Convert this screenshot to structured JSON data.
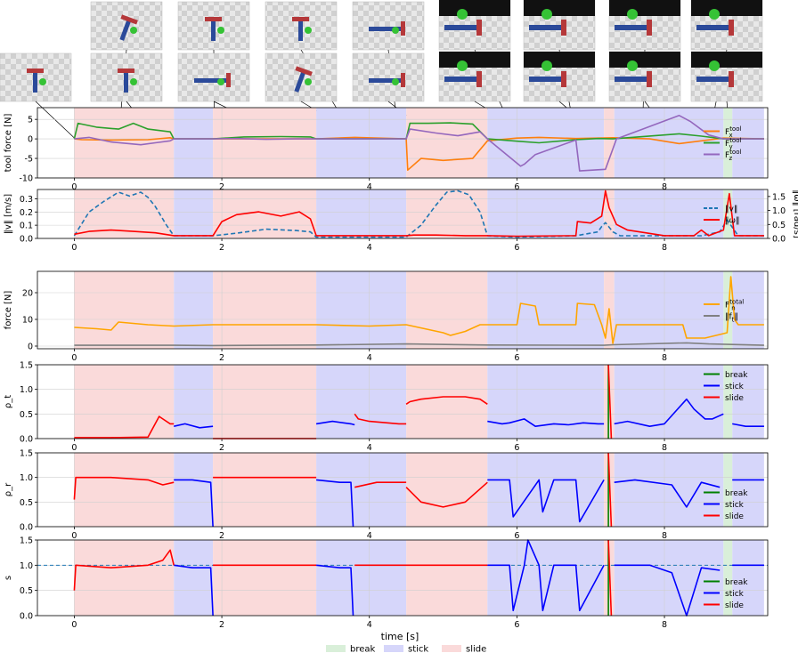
{
  "figure": {
    "xlabel": "time [s]",
    "xticks": [
      0,
      2,
      4,
      6,
      8
    ],
    "xlim": [
      -0.5,
      9.4
    ],
    "phase_colors": {
      "break": "#d9efd9",
      "stick": "#d6d6fa",
      "slide": "#fadada"
    },
    "phases": [
      {
        "label": "slide",
        "start": 0.0,
        "end": 1.35
      },
      {
        "label": "stick",
        "start": 1.35,
        "end": 1.88
      },
      {
        "label": "slide",
        "start": 1.88,
        "end": 3.28
      },
      {
        "label": "stick",
        "start": 3.28,
        "end": 4.5
      },
      {
        "label": "slide",
        "start": 4.5,
        "end": 5.6
      },
      {
        "label": "stick",
        "start": 5.6,
        "end": 7.18
      },
      {
        "label": "slide",
        "start": 7.18,
        "end": 7.32
      },
      {
        "label": "stick",
        "start": 7.32,
        "end": 8.8
      },
      {
        "label": "break",
        "start": 8.8,
        "end": 8.92
      },
      {
        "label": "stick",
        "start": 8.92,
        "end": 9.35
      }
    ],
    "bottom_legend": [
      {
        "label": "break",
        "color": "#d9efd9"
      },
      {
        "label": "stick",
        "color": "#d6d6fa"
      },
      {
        "label": "slide",
        "color": "#fadada"
      }
    ],
    "thumbnails": [
      {
        "t": 0.0,
        "kind": "tool_upright"
      },
      {
        "t": 0.6,
        "kind": "tool_tilted"
      },
      {
        "t": 1.1,
        "kind": "tool_small"
      },
      {
        "t": 1.9,
        "kind": "tool_upright"
      },
      {
        "t": 2.9,
        "kind": "tool_lying"
      },
      {
        "t": 3.8,
        "kind": "tool_small"
      },
      {
        "t": 3.9,
        "kind": "tool_tilted"
      },
      {
        "t": 4.4,
        "kind": "tool_lying"
      },
      {
        "t": 4.9,
        "kind": "tool_long"
      },
      {
        "t": 6.0,
        "kind": "closeup"
      },
      {
        "t": 6.25,
        "kind": "closeup"
      },
      {
        "t": 6.8,
        "kind": "closeup"
      },
      {
        "t": 7.15,
        "kind": "closeup"
      },
      {
        "t": 7.7,
        "kind": "closeup"
      },
      {
        "t": 8.1,
        "kind": "closeup"
      },
      {
        "t": 8.6,
        "kind": "closeup"
      },
      {
        "t": 8.9,
        "kind": "closeup"
      }
    ]
  },
  "chart_data": [
    {
      "type": "line",
      "ylabel": "tool force [N]",
      "ylim": [
        -10,
        8
      ],
      "yticks": [
        -10,
        -5,
        0,
        5
      ],
      "legend": "right",
      "series": [
        {
          "name": "F_x^tool",
          "color": "#ff7f0e",
          "x": [
            0,
            0.1,
            0.5,
            1.0,
            1.3,
            1.35,
            1.88,
            3.2,
            3.28,
            3.8,
            4.5,
            4.52,
            4.7,
            5.0,
            5.4,
            5.6,
            6.0,
            6.3,
            6.8,
            7.1,
            7.3,
            7.8,
            8.2,
            8.5,
            8.8,
            9.35
          ],
          "y": [
            0,
            -0.2,
            -0.3,
            -0.2,
            0.3,
            0,
            0,
            0,
            0,
            0.4,
            0,
            -8.0,
            -5.0,
            -5.5,
            -5.0,
            -0.5,
            0.2,
            0.4,
            0.1,
            0.2,
            0.3,
            0,
            -1.2,
            -0.5,
            0.2,
            0
          ]
        },
        {
          "name": "F_y^tool",
          "color": "#2ca02c",
          "x": [
            0,
            0.05,
            0.3,
            0.6,
            0.8,
            1.0,
            1.3,
            1.35,
            1.88,
            2.3,
            2.8,
            3.2,
            3.28,
            3.7,
            4.5,
            4.55,
            4.8,
            5.1,
            5.4,
            5.6,
            6.0,
            6.3,
            6.8,
            7.1,
            7.3,
            8.2,
            8.5,
            8.8,
            9.35
          ],
          "y": [
            0,
            4.0,
            3.0,
            2.5,
            4.0,
            2.5,
            1.8,
            0,
            0,
            0.5,
            0.6,
            0.5,
            0,
            0,
            0,
            4.0,
            4.0,
            4.1,
            3.8,
            0,
            -0.6,
            -1.0,
            -0.2,
            0.1,
            0,
            1.3,
            0.7,
            0,
            0
          ]
        },
        {
          "name": "F_z^tool",
          "color": "#9467bd",
          "x": [
            0,
            0.2,
            0.5,
            0.9,
            1.1,
            1.3,
            1.35,
            1.88,
            2.2,
            2.6,
            3.0,
            3.28,
            3.8,
            4.5,
            4.55,
            4.9,
            5.2,
            5.5,
            5.6,
            6.05,
            6.1,
            6.25,
            6.8,
            6.85,
            7.2,
            7.35,
            8.2,
            8.35,
            8.6,
            8.8,
            9.35
          ],
          "y": [
            0,
            0.4,
            -0.8,
            -1.5,
            -1.0,
            -0.5,
            0,
            0,
            0.1,
            -0.1,
            0,
            0,
            0,
            0,
            2.5,
            1.5,
            0.8,
            1.8,
            0,
            -7.0,
            -6.5,
            -4.0,
            -0.3,
            -8.2,
            -7.8,
            0,
            6.0,
            4.5,
            1.0,
            0,
            0
          ]
        }
      ]
    },
    {
      "type": "line",
      "ylabel": "‖v‖ [m/s]",
      "ylabel_right": "‖ω‖ [rad/s]",
      "ylim": [
        0,
        0.37
      ],
      "yticks": [
        0.0,
        0.1,
        0.2,
        0.3
      ],
      "ylim_right": [
        0,
        1.75
      ],
      "yticks_right": [
        0.0,
        0.5,
        1.0,
        1.5
      ],
      "legend": "right",
      "series": [
        {
          "name": "‖v‖",
          "color": "#1f77b4",
          "dashed": true,
          "axis": "left",
          "x": [
            0,
            0.2,
            0.4,
            0.6,
            0.75,
            0.9,
            1.0,
            1.1,
            1.25,
            1.35,
            1.88,
            2.2,
            2.6,
            3.0,
            3.2,
            3.28,
            4.5,
            4.7,
            4.9,
            5.05,
            5.2,
            5.35,
            5.5,
            5.6,
            6.0,
            6.8,
            7.1,
            7.15,
            7.2,
            7.3,
            7.4,
            8.0,
            8.5,
            8.75,
            8.85,
            9.0,
            9.35
          ],
          "y": [
            0.02,
            0.2,
            0.28,
            0.35,
            0.32,
            0.35,
            0.31,
            0.24,
            0.1,
            0.02,
            0.02,
            0.04,
            0.07,
            0.06,
            0.05,
            0.01,
            0.01,
            0.1,
            0.25,
            0.35,
            0.36,
            0.33,
            0.2,
            0.02,
            0.01,
            0.02,
            0.05,
            0.09,
            0.12,
            0.05,
            0.02,
            0.02,
            0.02,
            0.05,
            0.14,
            0.02,
            0.02
          ]
        },
        {
          "name": "‖ω‖",
          "color": "#ff0000",
          "axis": "right",
          "x": [
            0,
            0.2,
            0.5,
            0.8,
            1.1,
            1.35,
            1.88,
            2.0,
            2.2,
            2.5,
            2.8,
            3.05,
            3.2,
            3.28,
            4.5,
            4.6,
            4.9,
            5.3,
            5.6,
            6.0,
            6.8,
            6.82,
            7.0,
            7.15,
            7.2,
            7.25,
            7.35,
            7.5,
            8.0,
            8.4,
            8.5,
            8.6,
            8.8,
            8.88,
            8.95,
            9.35
          ],
          "y": [
            0.15,
            0.25,
            0.3,
            0.25,
            0.2,
            0.1,
            0.1,
            0.6,
            0.85,
            0.95,
            0.8,
            0.95,
            0.7,
            0.1,
            0.1,
            0.12,
            0.12,
            0.1,
            0.1,
            0.08,
            0.1,
            0.6,
            0.55,
            0.8,
            1.7,
            1.1,
            0.5,
            0.3,
            0.1,
            0.1,
            0.3,
            0.1,
            0.3,
            1.6,
            0.1,
            0.1
          ]
        }
      ]
    },
    {
      "type": "line",
      "ylabel": "force [N]",
      "ylim": [
        -1,
        28
      ],
      "yticks": [
        0,
        10,
        20
      ],
      "legend": "right",
      "series": [
        {
          "name": "F_n^total",
          "color": "#ffa500",
          "x": [
            0,
            0.3,
            0.5,
            0.6,
            1.0,
            1.35,
            1.88,
            2.5,
            3.28,
            4.0,
            4.5,
            5.0,
            5.1,
            5.3,
            5.5,
            5.6,
            6.0,
            6.05,
            6.25,
            6.3,
            6.8,
            6.82,
            7.05,
            7.15,
            7.2,
            7.25,
            7.3,
            7.35,
            8.0,
            8.25,
            8.3,
            8.55,
            8.7,
            8.85,
            8.9,
            8.95,
            9.0,
            9.35
          ],
          "y": [
            7,
            6.5,
            6,
            9,
            8,
            7.5,
            8,
            8,
            8,
            7.5,
            8,
            5.0,
            4.0,
            5.5,
            8,
            8,
            8,
            16,
            15,
            8,
            8,
            16,
            15.5,
            8,
            3,
            14,
            1,
            8,
            8,
            8,
            3,
            3,
            4,
            5,
            26,
            10,
            8,
            8
          ]
        },
        {
          "name": "‖f_t‖",
          "color": "#808080",
          "x": [
            0,
            1.35,
            1.88,
            3.28,
            4.5,
            5.6,
            7.18,
            7.3,
            8.3,
            8.6,
            9.35
          ],
          "y": [
            0.3,
            0.3,
            0.2,
            0.4,
            0.8,
            0.4,
            0.3,
            0.5,
            1.2,
            0.8,
            0.3
          ]
        }
      ]
    },
    {
      "type": "line",
      "ylabel": "ρ_t",
      "ylim": [
        0,
        1.5
      ],
      "yticks": [
        0.0,
        0.5,
        1.0,
        1.5
      ],
      "legend": "top-right",
      "series": [
        {
          "name": "break",
          "color": "#008000",
          "x": [
            7.24,
            7.24
          ],
          "y": [
            0,
            1.5
          ]
        },
        {
          "name": "stick",
          "color": "#0000ff",
          "x": [
            1.35,
            1.5,
            1.7,
            1.88,
            null,
            3.28,
            3.5,
            3.75,
            3.8,
            null,
            5.6,
            5.8,
            5.9,
            6.1,
            6.25,
            6.5,
            6.7,
            6.9,
            7.1,
            7.18,
            null,
            7.32,
            7.5,
            7.8,
            8.0,
            8.3,
            8.4,
            8.55,
            8.65,
            8.8,
            null,
            8.92,
            9.1,
            9.35
          ],
          "y": [
            0.25,
            0.3,
            0.22,
            0.25,
            null,
            0.3,
            0.35,
            0.3,
            0.28,
            null,
            0.35,
            0.3,
            0.32,
            0.4,
            0.25,
            0.3,
            0.28,
            0.32,
            0.3,
            0.3,
            null,
            0.3,
            0.35,
            0.25,
            0.3,
            0.8,
            0.6,
            0.4,
            0.4,
            0.5,
            null,
            0.3,
            0.25,
            0.25
          ]
        },
        {
          "name": "slide",
          "color": "#ff0000",
          "x": [
            0,
            0.5,
            1.0,
            1.15,
            1.2,
            1.3,
            1.35,
            null,
            1.88,
            3.28,
            null,
            3.8,
            3.85,
            4.0,
            4.4,
            4.5,
            null,
            4.5,
            4.55,
            4.7,
            5.0,
            5.3,
            5.5,
            5.6,
            null,
            7.24,
            7.28
          ],
          "y": [
            0.02,
            0.02,
            0.03,
            0.45,
            0.4,
            0.3,
            0.3,
            null,
            0.0,
            0.0,
            null,
            0.5,
            0.4,
            0.35,
            0.3,
            0.3,
            null,
            0.7,
            0.75,
            0.8,
            0.85,
            0.85,
            0.8,
            0.7,
            null,
            1.5,
            0
          ]
        }
      ]
    },
    {
      "type": "line",
      "ylabel": "ρ_r",
      "ylim": [
        0,
        1.5
      ],
      "yticks": [
        0.0,
        0.5,
        1.0,
        1.5
      ],
      "legend": "bottom-right",
      "series": [
        {
          "name": "break",
          "color": "#008000",
          "x": [
            7.24,
            7.24
          ],
          "y": [
            0,
            1.5
          ]
        },
        {
          "name": "stick",
          "color": "#0000ff",
          "x": [
            1.35,
            1.6,
            1.85,
            1.88,
            null,
            3.28,
            3.6,
            3.75,
            3.78,
            null,
            5.6,
            5.9,
            5.95,
            6.3,
            6.35,
            6.5,
            6.8,
            6.85,
            7.18,
            null,
            7.32,
            7.6,
            8.1,
            8.3,
            8.5,
            8.75,
            null,
            8.92,
            9.35
          ],
          "y": [
            0.95,
            0.95,
            0.9,
            0,
            null,
            0.95,
            0.9,
            0.9,
            0,
            null,
            0.95,
            0.95,
            0.2,
            0.95,
            0.3,
            0.95,
            0.95,
            0.1,
            0.95,
            null,
            0.9,
            0.95,
            0.85,
            0.4,
            0.9,
            0.8,
            null,
            0.95,
            0.95
          ]
        },
        {
          "name": "slide",
          "color": "#ff0000",
          "x": [
            0,
            0.02,
            0.5,
            1.0,
            1.2,
            1.35,
            null,
            1.88,
            3.28,
            null,
            3.8,
            4.1,
            4.5,
            null,
            4.5,
            4.7,
            5.0,
            5.3,
            5.6,
            null,
            7.24,
            7.28
          ],
          "y": [
            0.55,
            1.0,
            1.0,
            0.95,
            0.85,
            0.9,
            null,
            1.0,
            1.0,
            null,
            0.8,
            0.9,
            0.9,
            null,
            0.8,
            0.5,
            0.4,
            0.5,
            0.9,
            null,
            1.5,
            0
          ]
        }
      ]
    },
    {
      "type": "line",
      "ylabel": "s",
      "ylim": [
        0,
        1.5
      ],
      "yticks": [
        0.0,
        0.5,
        1.0,
        1.5
      ],
      "reference_line": 1.0,
      "legend": "bottom-right",
      "series": [
        {
          "name": "break",
          "color": "#008000",
          "x": [
            7.24,
            7.24
          ],
          "y": [
            0,
            1.5
          ]
        },
        {
          "name": "stick",
          "color": "#0000ff",
          "x": [
            1.35,
            1.6,
            1.85,
            1.88,
            null,
            3.28,
            3.6,
            3.75,
            3.78,
            null,
            5.6,
            5.9,
            5.95,
            6.1,
            6.15,
            6.3,
            6.35,
            6.5,
            6.8,
            6.85,
            7.18,
            null,
            7.32,
            7.8,
            8.1,
            8.3,
            8.5,
            8.75,
            null,
            8.92,
            9.35
          ],
          "y": [
            1.0,
            0.95,
            0.95,
            0,
            null,
            1.0,
            0.95,
            0.95,
            0,
            null,
            1.0,
            1.0,
            0.1,
            1.0,
            1.5,
            1.0,
            0.1,
            1.0,
            1.0,
            0.1,
            1.0,
            null,
            1.0,
            1.0,
            0.85,
            0,
            0.95,
            0.9,
            null,
            1.0,
            1.0
          ]
        },
        {
          "name": "slide",
          "color": "#ff0000",
          "x": [
            0,
            0.02,
            0.5,
            1.0,
            1.2,
            1.3,
            1.35,
            null,
            1.88,
            3.28,
            null,
            3.8,
            4.5,
            null,
            4.5,
            5.6,
            null,
            7.24,
            7.28
          ],
          "y": [
            0.5,
            1.0,
            0.95,
            1.0,
            1.1,
            1.3,
            1.0,
            null,
            1.0,
            1.0,
            null,
            1.0,
            1.0,
            null,
            1.0,
            1.0,
            null,
            1.5,
            0
          ]
        }
      ]
    }
  ]
}
